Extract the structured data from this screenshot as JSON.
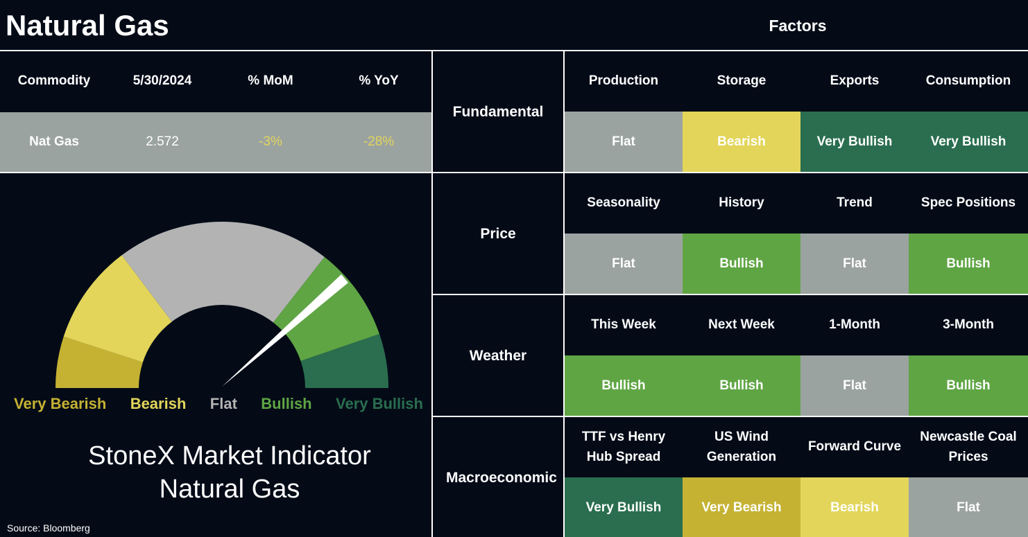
{
  "header": {
    "title": "Natural Gas",
    "factors_title": "Factors"
  },
  "commodity_table": {
    "columns": [
      "Commodity",
      "5/30/2024",
      "% MoM",
      "% YoY"
    ],
    "row": [
      "Nat Gas",
      "2.572",
      "-3%",
      "-28%"
    ]
  },
  "gauge": {
    "labels": [
      {
        "text": "Very Bearish",
        "color": "#c5b233"
      },
      {
        "text": "Bearish",
        "color": "#e2d55a"
      },
      {
        "text": "Flat",
        "color": "#b3b3b3"
      },
      {
        "text": "Bullish",
        "color": "#5fa544"
      },
      {
        "text": "Very Bullish",
        "color": "#2a6e4f"
      }
    ]
  },
  "indicator": {
    "line1": "StoneX Market Indicator",
    "line2": "Natural Gas"
  },
  "source": "Source: Bloomberg",
  "factors": [
    {
      "group": "Fundamental",
      "items": [
        {
          "name": "Production",
          "rating": "Flat",
          "color": "#9ba3a1"
        },
        {
          "name": "Storage",
          "rating": "Bearish",
          "color": "#e2d55a"
        },
        {
          "name": "Exports",
          "rating": "Very Bullish",
          "color": "#2a6e4f"
        },
        {
          "name": "Consumption",
          "rating": "Very Bullish",
          "color": "#2a6e4f"
        }
      ]
    },
    {
      "group": "Price",
      "items": [
        {
          "name": "Seasonality",
          "rating": "Flat",
          "color": "#9ba3a1"
        },
        {
          "name": "History",
          "rating": "Bullish",
          "color": "#5fa544"
        },
        {
          "name": "Trend",
          "rating": "Flat",
          "color": "#9ba3a1"
        },
        {
          "name": "Spec Positions",
          "rating": "Bullish",
          "color": "#5fa544"
        }
      ]
    },
    {
      "group": "Weather",
      "items": [
        {
          "name": "This Week",
          "rating": "Bullish",
          "color": "#5fa544"
        },
        {
          "name": "Next Week",
          "rating": "Bullish",
          "color": "#5fa544"
        },
        {
          "name": "1-Month",
          "rating": "Flat",
          "color": "#9ba3a1"
        },
        {
          "name": "3-Month",
          "rating": "Bullish",
          "color": "#5fa544"
        }
      ]
    },
    {
      "group": "Macroeconomic",
      "items": [
        {
          "name": "TTF vs Henry Hub Spread",
          "rating": "Very Bullish",
          "color": "#2a6e4f"
        },
        {
          "name": "US Wind Generation",
          "rating": "Very Bearish",
          "color": "#c5b233"
        },
        {
          "name": "Forward Curve",
          "rating": "Bearish",
          "color": "#e2d55a"
        },
        {
          "name": "Newcastle Coal Prices",
          "rating": "Flat",
          "color": "#9ba3a1"
        }
      ]
    }
  ]
}
